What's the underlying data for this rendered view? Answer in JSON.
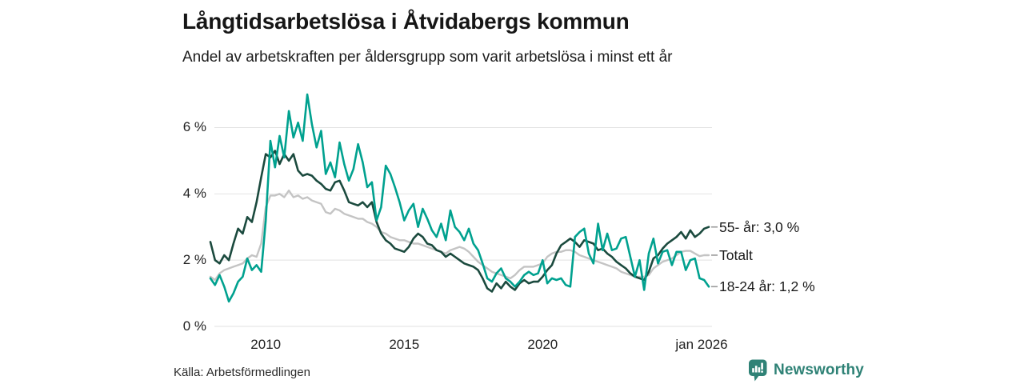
{
  "header": {
    "title": "Långtidsarbetslösa i Åtvidabergs kommun",
    "subtitle": "Andel av arbetskraften per åldersgrupp som varit arbetslösa i minst ett år"
  },
  "source": {
    "label": "Källa: Arbetsförmedlingen"
  },
  "brand": {
    "name": "Newsworthy",
    "color": "#2f8276"
  },
  "chart_data": {
    "type": "line",
    "title": "Långtidsarbetslösa i Åtvidabergs kommun",
    "subtitle": "Andel av arbetskraften per åldersgrupp som varit arbetslösa i minst ett år",
    "unit": "% av arbetskraften",
    "x_start": 2008.0,
    "x_end": 2026.0,
    "x_step_years": 0.1667,
    "ylim": [
      0,
      7.2
    ],
    "grid": true,
    "gridline_color": "#e2e2e2",
    "connector_color": "#9a9a9a",
    "yticks": [
      {
        "value": 0,
        "label": "0 %"
      },
      {
        "value": 2,
        "label": "2 %"
      },
      {
        "value": 4,
        "label": "4 %"
      },
      {
        "value": 6,
        "label": "6 %"
      }
    ],
    "xticks": [
      {
        "value": 2010,
        "label": "2010"
      },
      {
        "value": 2015,
        "label": "2015"
      },
      {
        "value": 2020,
        "label": "2020"
      },
      {
        "value": 2026,
        "label": "jan 2026"
      }
    ],
    "series": [
      {
        "name": "Totalt",
        "end_label": "Totalt",
        "end_value": null,
        "color": "#c4c4c4",
        "width": 2.4,
        "values": [
          1.5,
          1.4,
          1.6,
          1.7,
          1.75,
          1.8,
          1.85,
          1.9,
          2.05,
          2.15,
          2.1,
          2.5,
          3.6,
          3.95,
          3.95,
          4.0,
          3.9,
          4.1,
          3.9,
          3.95,
          3.85,
          3.9,
          3.8,
          3.75,
          3.7,
          3.45,
          3.4,
          3.55,
          3.5,
          3.4,
          3.35,
          3.3,
          3.25,
          3.25,
          3.15,
          3.1,
          3.0,
          2.85,
          2.8,
          2.7,
          2.65,
          2.6,
          2.6,
          2.55,
          2.5,
          2.5,
          2.45,
          2.4,
          2.35,
          2.3,
          2.25,
          2.2,
          2.3,
          2.35,
          2.4,
          2.35,
          2.25,
          2.1,
          1.95,
          1.85,
          1.75,
          1.65,
          1.6,
          1.55,
          1.5,
          1.45,
          1.55,
          1.7,
          1.8,
          1.8,
          1.8,
          1.85,
          1.9,
          2.1,
          2.2,
          2.25,
          2.25,
          2.3,
          2.3,
          2.25,
          2.15,
          2.1,
          2.05,
          2.0,
          1.95,
          1.9,
          1.85,
          1.8,
          1.75,
          1.65,
          1.6,
          1.55,
          1.5,
          1.5,
          1.5,
          1.55,
          1.75,
          1.85,
          1.95,
          2.0,
          2.05,
          2.15,
          2.25,
          2.28,
          2.28,
          2.2,
          2.12,
          2.15,
          2.15
        ]
      },
      {
        "name": "55- år",
        "end_label": "55- år: 3,0 %",
        "end_value": 3.0,
        "color": "#1b4a3e",
        "width": 2.6,
        "values": [
          2.55,
          2.0,
          1.9,
          2.15,
          2.0,
          2.5,
          2.95,
          2.8,
          3.3,
          3.15,
          3.75,
          4.5,
          5.2,
          5.1,
          5.3,
          4.9,
          5.2,
          5.0,
          5.2,
          4.7,
          4.55,
          4.6,
          4.55,
          4.4,
          4.3,
          4.15,
          4.1,
          4.35,
          4.4,
          4.1,
          3.75,
          3.7,
          3.65,
          3.75,
          3.6,
          3.75,
          3.15,
          2.8,
          2.6,
          2.5,
          2.35,
          2.3,
          2.25,
          2.4,
          2.65,
          2.8,
          2.7,
          2.5,
          2.45,
          2.3,
          2.25,
          2.1,
          2.2,
          2.1,
          2.0,
          1.9,
          1.85,
          1.8,
          1.7,
          1.45,
          1.15,
          1.05,
          1.3,
          1.15,
          1.35,
          1.2,
          1.1,
          1.3,
          1.4,
          1.3,
          1.35,
          1.35,
          1.5,
          1.7,
          1.85,
          2.2,
          2.45,
          2.55,
          2.65,
          2.55,
          2.4,
          2.6,
          2.55,
          2.5,
          2.3,
          2.35,
          2.2,
          2.1,
          1.95,
          1.85,
          1.75,
          1.6,
          1.5,
          1.45,
          1.4,
          1.65,
          2.05,
          2.15,
          2.35,
          2.5,
          2.6,
          2.7,
          2.85,
          2.65,
          2.9,
          2.7,
          2.8,
          2.95,
          3.0
        ]
      },
      {
        "name": "18-24 år",
        "end_label": "18-24 år: 1,2 %",
        "end_value": 1.2,
        "color": "#00a18f",
        "width": 2.6,
        "values": [
          1.45,
          1.25,
          1.55,
          1.2,
          0.75,
          1.0,
          1.35,
          1.5,
          2.05,
          1.7,
          1.85,
          1.65,
          3.2,
          5.6,
          4.8,
          5.75,
          5.1,
          6.5,
          5.7,
          6.15,
          5.6,
          7.0,
          6.1,
          5.4,
          5.9,
          4.6,
          4.95,
          4.5,
          5.55,
          4.9,
          4.4,
          4.75,
          5.5,
          4.95,
          4.2,
          4.35,
          3.2,
          3.6,
          4.85,
          4.6,
          4.2,
          3.75,
          3.2,
          3.5,
          3.7,
          3.0,
          3.55,
          3.25,
          2.9,
          2.7,
          3.1,
          2.6,
          3.5,
          3.0,
          2.85,
          2.6,
          2.95,
          2.5,
          2.3,
          1.9,
          1.45,
          1.35,
          1.6,
          1.75,
          1.45,
          1.35,
          1.2,
          1.35,
          1.55,
          1.65,
          1.55,
          1.6,
          2.0,
          1.3,
          1.45,
          1.4,
          1.45,
          1.25,
          1.2,
          2.7,
          2.85,
          2.95,
          2.2,
          1.9,
          3.1,
          2.3,
          2.8,
          2.3,
          2.35,
          2.65,
          2.7,
          2.1,
          1.5,
          2.0,
          1.1,
          2.2,
          2.65,
          1.9,
          2.25,
          2.3,
          1.85,
          2.25,
          2.25,
          1.7,
          2.0,
          2.05,
          1.45,
          1.4,
          1.2
        ]
      }
    ]
  }
}
